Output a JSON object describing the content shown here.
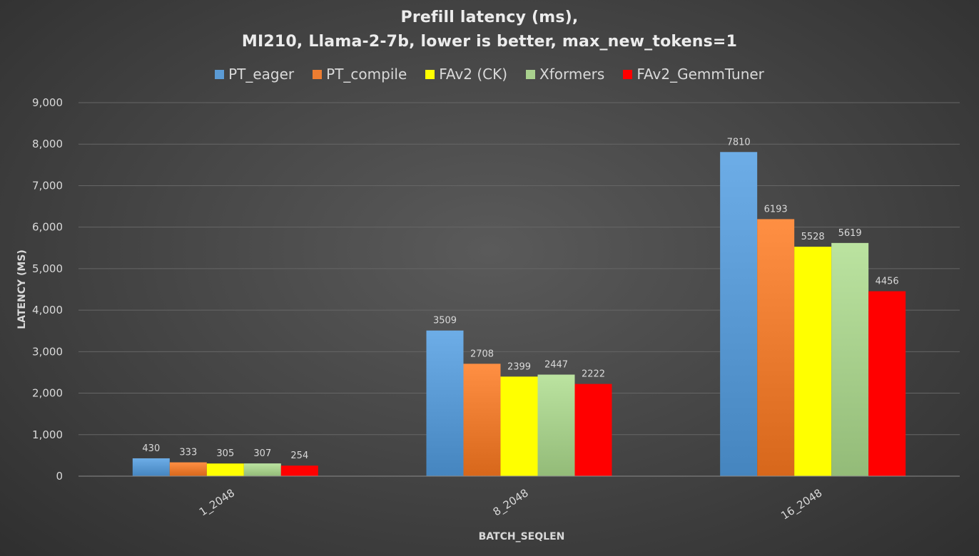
{
  "chart_data": {
    "type": "bar",
    "title": "Prefill latency (ms),",
    "subtitle": "MI210, Llama-2-7b, lower is better, max_new_tokens=1",
    "xlabel": "BATCH_SEQLEN",
    "ylabel": "LATENCY (MS)",
    "categories": [
      "1_2048",
      "8_2048",
      "16_2048"
    ],
    "ylim": [
      0,
      9000
    ],
    "yticks": [
      0,
      1000,
      2000,
      3000,
      4000,
      5000,
      6000,
      7000,
      8000,
      9000
    ],
    "ytick_labels": [
      "0",
      "1,000",
      "2,000",
      "3,000",
      "4,000",
      "5,000",
      "6,000",
      "7,000",
      "8,000",
      "9,000"
    ],
    "grid": true,
    "legend_position": "top",
    "series": [
      {
        "name": "PT_eager",
        "color": "#5b9bd5",
        "values": [
          430,
          3509,
          7810
        ]
      },
      {
        "name": "PT_compile",
        "color": "#ed7d31",
        "values": [
          333,
          2708,
          6193
        ]
      },
      {
        "name": "FAv2 (CK)",
        "color": "#ffff00",
        "values": [
          305,
          2399,
          5528
        ]
      },
      {
        "name": "Xformers",
        "color": "#a9d18e",
        "values": [
          307,
          2447,
          5619
        ]
      },
      {
        "name": "FAv2_GemmTuner",
        "color": "#ff0000",
        "values": [
          254,
          2222,
          4456
        ]
      }
    ]
  }
}
